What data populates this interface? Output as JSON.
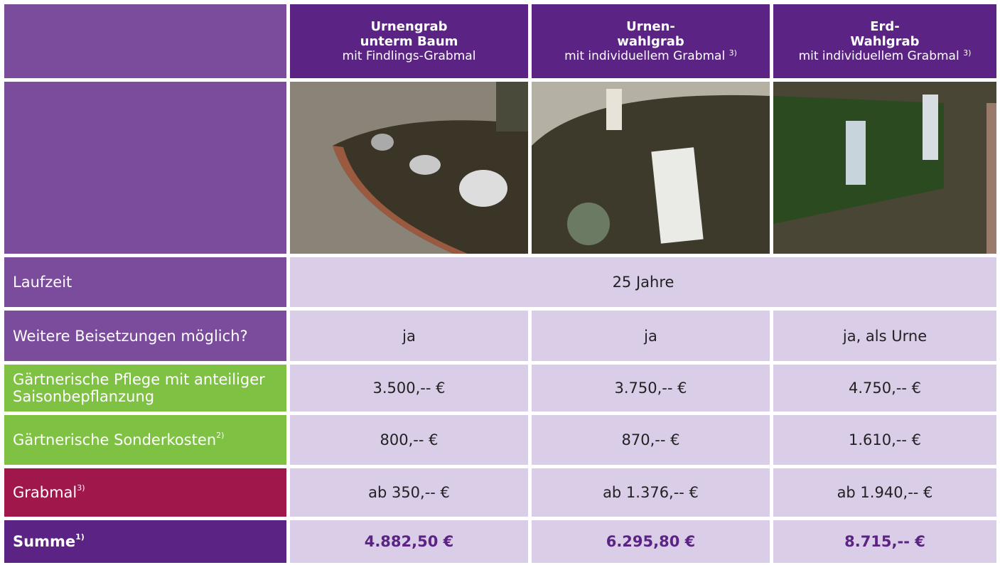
{
  "header": {
    "columns": [
      {
        "title": [
          "Urnengrab",
          "unterm Baum"
        ],
        "subtitle": "mit Findlings-Grabmal"
      },
      {
        "title": [
          "Urnen-",
          "wahlgrab"
        ],
        "subtitle": "mit individuellem Grabmal",
        "note": "3)"
      },
      {
        "title": [
          "Erd-",
          "Wahlgrab"
        ],
        "subtitle": "mit individuellem Grabmal",
        "note": "3)"
      }
    ]
  },
  "table": {
    "rows": [
      {
        "label": "Laufzeit",
        "values": [
          "25 Jahre"
        ]
      },
      {
        "label": "Weitere Beisetzungen möglich?",
        "values": [
          "ja",
          "ja",
          "ja, als Urne"
        ]
      },
      {
        "label": "Gärtnerische Pflege mit anteiliger Saisonbepflanzung",
        "values": [
          "3.500,-- €",
          "3.750,-- €",
          "4.750,-- €"
        ]
      },
      {
        "label": "Gärtnerische Sonderkosten",
        "note": "2)",
        "values": [
          "800,-- €",
          "870,-- €",
          "1.610,-- €"
        ]
      },
      {
        "label": "Grabmal",
        "note": "3)",
        "values": [
          "ab 350,-- €",
          "ab 1.376,-- €",
          "ab 1.940,-- €"
        ]
      },
      {
        "label": "Summe",
        "note": "1)",
        "values": [
          "4.882,50 €",
          "6.295,80 €",
          "8.715,-- €"
        ]
      }
    ]
  }
}
